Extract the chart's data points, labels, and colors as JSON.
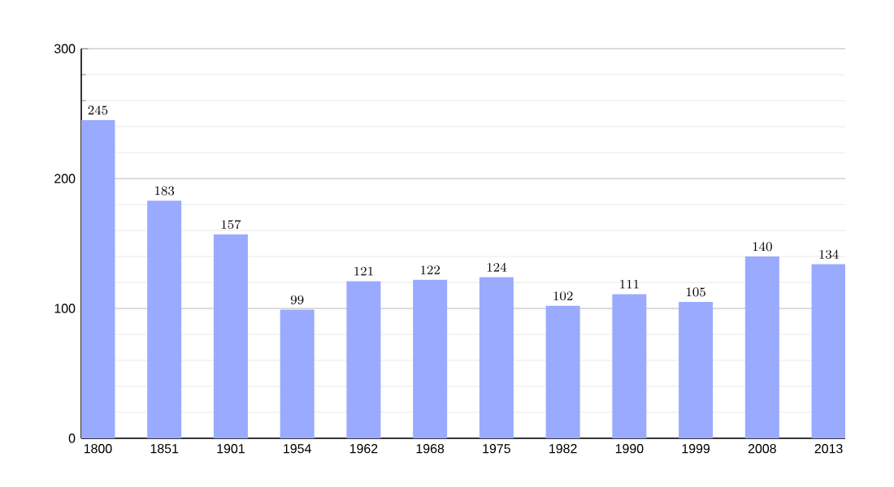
{
  "chart_data": {
    "type": "bar",
    "categories": [
      "1800",
      "1851",
      "1901",
      "1954",
      "1962",
      "1968",
      "1975",
      "1982",
      "1990",
      "1999",
      "2008",
      "2013"
    ],
    "values": [
      245,
      183,
      157,
      99,
      121,
      122,
      124,
      102,
      111,
      105,
      140,
      134
    ],
    "color": "#99aaff",
    "ylim": [
      0,
      300
    ],
    "yticks": [
      0,
      100,
      200,
      300
    ],
    "grid": "y",
    "data_labels": true
  }
}
